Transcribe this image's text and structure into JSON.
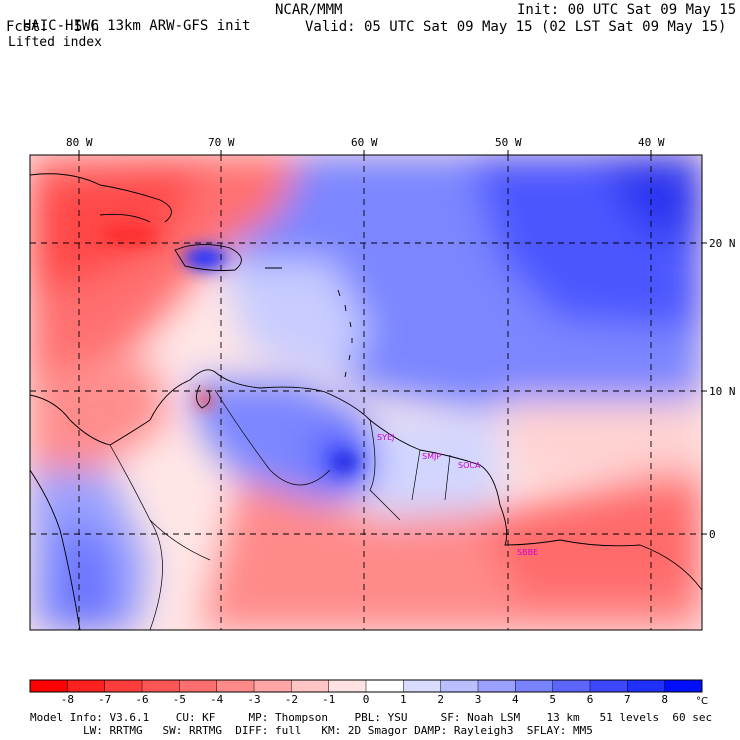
{
  "header": {
    "model_title": "HAIC-HIWC 13km ARW-GFS init",
    "org": "NCAR/MMM",
    "init": "Init: 00 UTC Sat 09 May 15",
    "fcst_label": "Fcst:",
    "fcst_value": "5 h",
    "valid": "Valid: 05 UTC Sat 09 May 15 (02 LST Sat 09 May 15)",
    "field": "Lifted index"
  },
  "map": {
    "lon_labels": [
      "80 W",
      "70 W",
      "60 W",
      "50 W",
      "40 W"
    ],
    "lat_labels": [
      "20 N",
      "10 N",
      "0"
    ],
    "stations": [
      "SYEJ",
      "SMJP",
      "SOCA",
      "SBBE"
    ],
    "station_color": "#cc00cc"
  },
  "colorbar": {
    "labels": [
      "-8",
      "-7",
      "-6",
      "-5",
      "-4",
      "-3",
      "-2",
      "-1",
      "0",
      "1",
      "2",
      "3",
      "4",
      "5",
      "6",
      "7",
      "8"
    ],
    "unit": "°C",
    "colors": [
      "#ff0000",
      "#ff2020",
      "#ff3d3d",
      "#ff5555",
      "#ff6f6f",
      "#ff8a8a",
      "#ffa5a5",
      "#ffc5c5",
      "#ffe2e2",
      "#ffffff",
      "#d9dcff",
      "#b9bfff",
      "#9aa1ff",
      "#7a83ff",
      "#5c66ff",
      "#3d47ff",
      "#2030ff",
      "#0010ff"
    ]
  },
  "model_info": {
    "line1": "Model Info: V3.6.1    CU: KF     MP: Thompson    PBL: YSU     SF: Noah LSM    13 km   51 levels  60 sec",
    "line2": "        LW: RRTMG   SW: RRTMG  DIFF: full   KM: 2D Smagor DAMP: Rayleigh3  SFLAY: MM5"
  }
}
